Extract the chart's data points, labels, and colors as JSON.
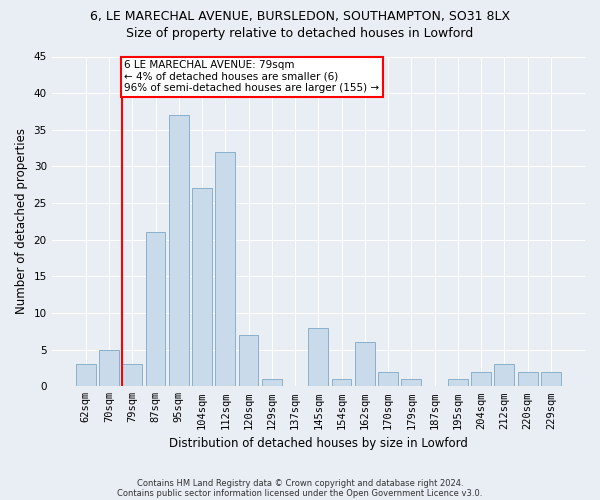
{
  "title1": "6, LE MARECHAL AVENUE, BURSLEDON, SOUTHAMPTON, SO31 8LX",
  "title2": "Size of property relative to detached houses in Lowford",
  "xlabel": "Distribution of detached houses by size in Lowford",
  "ylabel": "Number of detached properties",
  "categories": [
    "62sqm",
    "70sqm",
    "79sqm",
    "87sqm",
    "95sqm",
    "104sqm",
    "112sqm",
    "120sqm",
    "129sqm",
    "137sqm",
    "145sqm",
    "154sqm",
    "162sqm",
    "170sqm",
    "179sqm",
    "187sqm",
    "195sqm",
    "204sqm",
    "212sqm",
    "220sqm",
    "229sqm"
  ],
  "values": [
    3,
    5,
    3,
    21,
    37,
    27,
    32,
    7,
    1,
    0,
    8,
    1,
    6,
    2,
    1,
    0,
    1,
    2,
    3,
    2,
    2
  ],
  "bar_color": "#c9daea",
  "bar_edge_color": "#8ab0cc",
  "annotation_text": "6 LE MARECHAL AVENUE: 79sqm\n← 4% of detached houses are smaller (6)\n96% of semi-detached houses are larger (155) →",
  "annotation_box_color": "white",
  "annotation_box_edge_color": "red",
  "vline_color": "red",
  "vline_xindex": 2,
  "ylim": [
    0,
    45
  ],
  "yticks": [
    0,
    5,
    10,
    15,
    20,
    25,
    30,
    35,
    40,
    45
  ],
  "footer1": "Contains HM Land Registry data © Crown copyright and database right 2024.",
  "footer2": "Contains public sector information licensed under the Open Government Licence v3.0.",
  "bg_color": "#e8eef4",
  "plot_bg_color": "#e8eef4",
  "grid_color": "white",
  "title1_fontsize": 9,
  "title2_fontsize": 9,
  "tick_fontsize": 7.5,
  "label_fontsize": 8.5,
  "footer_fontsize": 6,
  "annot_fontsize": 7.5
}
